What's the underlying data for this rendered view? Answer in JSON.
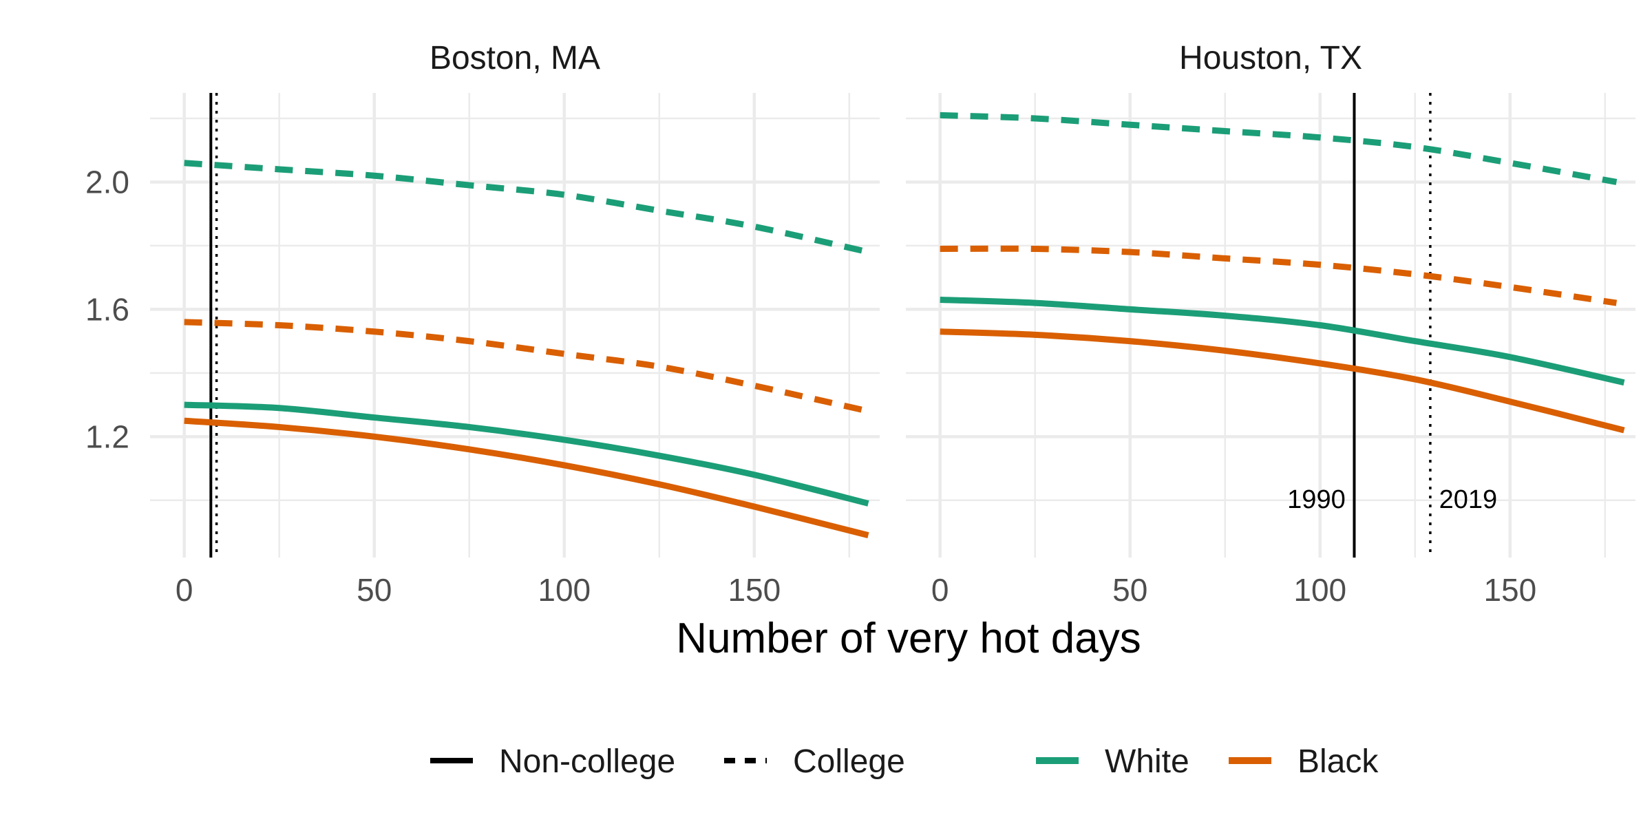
{
  "chart_data": {
    "type": "line",
    "xlabel": "Number of very hot days",
    "ylabel": "",
    "xlim": [
      -9,
      183
    ],
    "ylim": [
      0.82,
      2.28
    ],
    "x_ticks": [
      0,
      50,
      100,
      150
    ],
    "y_ticks": [
      1.2,
      1.6,
      2.0
    ],
    "grid": true,
    "legend_position": "bottom",
    "legend": {
      "linetype": [
        {
          "label": "Non-college",
          "dash": "solid"
        },
        {
          "label": "College",
          "dash": "dashed"
        }
      ],
      "color": [
        {
          "label": "White",
          "color": "#1b9e77"
        },
        {
          "label": "Black",
          "color": "#d95f02"
        }
      ]
    },
    "panels": [
      {
        "title": "Boston, MA",
        "vlines": [
          {
            "x": 7,
            "style": "solid",
            "label": ""
          },
          {
            "x": 8.5,
            "style": "dotted",
            "label": ""
          }
        ],
        "series": [
          {
            "race": "White",
            "education": "College",
            "color": "#1b9e77",
            "dash": "dashed",
            "x": [
              0,
              25,
              50,
              75,
              100,
              125,
              150,
              180
            ],
            "y": [
              2.06,
              2.04,
              2.02,
              1.99,
              1.96,
              1.91,
              1.86,
              1.78
            ]
          },
          {
            "race": "Black",
            "education": "College",
            "color": "#d95f02",
            "dash": "dashed",
            "x": [
              0,
              25,
              50,
              75,
              100,
              125,
              150,
              180
            ],
            "y": [
              1.56,
              1.55,
              1.53,
              1.5,
              1.46,
              1.42,
              1.36,
              1.28
            ]
          },
          {
            "race": "White",
            "education": "Non-college",
            "color": "#1b9e77",
            "dash": "solid",
            "x": [
              0,
              25,
              50,
              75,
              100,
              125,
              150,
              180
            ],
            "y": [
              1.3,
              1.29,
              1.26,
              1.23,
              1.19,
              1.14,
              1.08,
              0.99
            ]
          },
          {
            "race": "Black",
            "education": "Non-college",
            "color": "#d95f02",
            "dash": "solid",
            "x": [
              0,
              25,
              50,
              75,
              100,
              125,
              150,
              180
            ],
            "y": [
              1.25,
              1.23,
              1.2,
              1.16,
              1.11,
              1.05,
              0.98,
              0.89
            ]
          }
        ]
      },
      {
        "title": "Houston, TX",
        "vlines": [
          {
            "x": 109,
            "style": "solid",
            "label": "1990"
          },
          {
            "x": 129,
            "style": "dotted",
            "label": "2019"
          }
        ],
        "series": [
          {
            "race": "White",
            "education": "College",
            "color": "#1b9e77",
            "dash": "dashed",
            "x": [
              0,
              25,
              50,
              75,
              100,
              125,
              150,
              178
            ],
            "y": [
              2.21,
              2.2,
              2.18,
              2.16,
              2.14,
              2.11,
              2.06,
              2.0
            ]
          },
          {
            "race": "Black",
            "education": "College",
            "color": "#d95f02",
            "dash": "dashed",
            "x": [
              0,
              25,
              50,
              75,
              100,
              125,
              150,
              178
            ],
            "y": [
              1.79,
              1.79,
              1.78,
              1.76,
              1.74,
              1.71,
              1.67,
              1.62
            ]
          },
          {
            "race": "White",
            "education": "Non-college",
            "color": "#1b9e77",
            "dash": "solid",
            "x": [
              0,
              25,
              50,
              75,
              100,
              125,
              150,
              180
            ],
            "y": [
              1.63,
              1.62,
              1.6,
              1.58,
              1.55,
              1.5,
              1.45,
              1.37
            ]
          },
          {
            "race": "Black",
            "education": "Non-college",
            "color": "#d95f02",
            "dash": "solid",
            "x": [
              0,
              25,
              50,
              75,
              100,
              125,
              150,
              180
            ],
            "y": [
              1.53,
              1.52,
              1.5,
              1.47,
              1.43,
              1.38,
              1.31,
              1.22
            ]
          }
        ]
      }
    ]
  }
}
